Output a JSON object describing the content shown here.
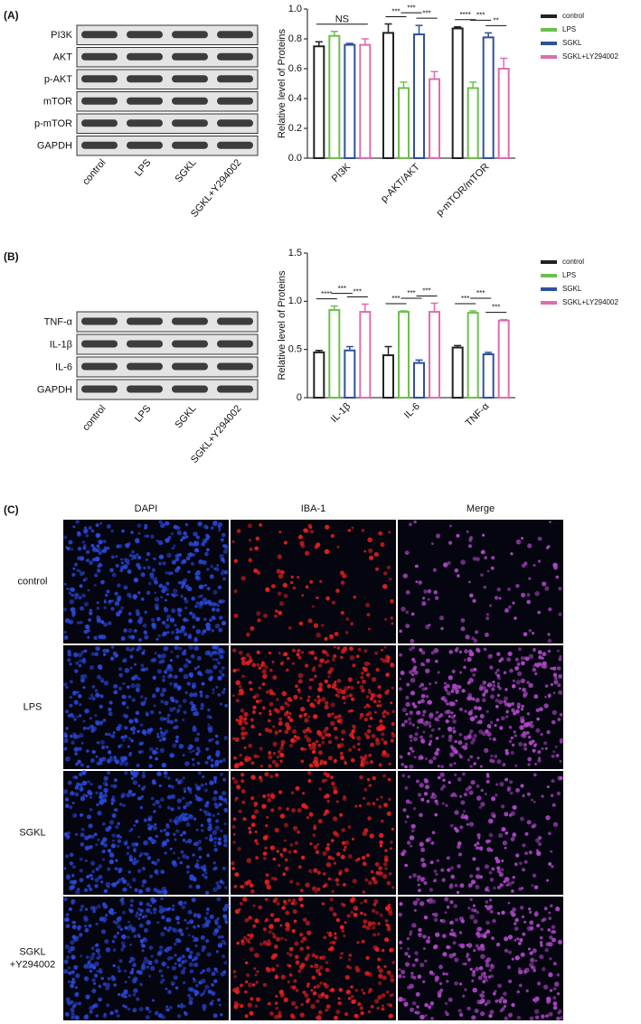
{
  "panels": {
    "labels": [
      "(A)",
      "(B)",
      "(C)"
    ]
  },
  "blots": [
    {
      "rows": [
        "PI3K",
        "AKT",
        "p-AKT",
        "mTOR",
        "p-mTOR",
        "GAPDH"
      ],
      "columns": [
        "control",
        "LPS",
        "SGKL",
        "SGKL+Y294002"
      ]
    },
    {
      "rows": [
        "TNF-α",
        "IL-1β",
        "IL-6",
        "GAPDH"
      ],
      "columns": [
        "control",
        "LPS",
        "SGKL",
        "SGKL+Y294002"
      ]
    }
  ],
  "chart_data": [
    {
      "type": "bar",
      "ylabel": "Relative level of Proteins",
      "categories": [
        "PI3K",
        "p-AKT/AKT",
        "p-mTOR/mTOR"
      ],
      "series": [
        {
          "name": "control",
          "color": "#222222",
          "values": [
            0.75,
            0.84,
            0.87
          ],
          "error": [
            0.03,
            0.06,
            0.01
          ]
        },
        {
          "name": "LPS",
          "color": "#6cc04a",
          "values": [
            0.82,
            0.47,
            0.47
          ],
          "error": [
            0.03,
            0.04,
            0.04
          ]
        },
        {
          "name": "SGKL",
          "color": "#2f4f9f",
          "values": [
            0.76,
            0.83,
            0.81
          ],
          "error": [
            0.01,
            0.06,
            0.03
          ]
        },
        {
          "name": "SGKL+LY294002",
          "color": "#e06cae",
          "values": [
            0.76,
            0.53,
            0.6
          ],
          "error": [
            0.04,
            0.05,
            0.07
          ]
        }
      ],
      "ylim": [
        0,
        1.0
      ],
      "yticks": [
        {
          "value": 0,
          "label": "0.0"
        },
        {
          "value": 0.2,
          "label": "0.2"
        },
        {
          "value": 0.4,
          "label": "0.4"
        },
        {
          "value": 0.6,
          "label": "0.6"
        },
        {
          "value": 0.8,
          "label": "0.8"
        },
        {
          "value": 1.0,
          "label": "1.0"
        }
      ],
      "annotations": [
        [
          "NS"
        ],
        [
          "***",
          "***",
          "***"
        ],
        [
          "****",
          "***",
          "**"
        ]
      ]
    },
    {
      "type": "bar",
      "ylabel": "Relative level of Proteins",
      "categories": [
        "IL-1β",
        "IL-6",
        "TNF-α"
      ],
      "series": [
        {
          "name": "control",
          "color": "#222222",
          "values": [
            0.47,
            0.44,
            0.52
          ],
          "error": [
            0.02,
            0.09,
            0.02
          ]
        },
        {
          "name": "LPS",
          "color": "#6cc04a",
          "values": [
            0.91,
            0.89,
            0.88
          ],
          "error": [
            0.04,
            0.01,
            0.02
          ]
        },
        {
          "name": "SGKL",
          "color": "#2f4f9f",
          "values": [
            0.49,
            0.36,
            0.45
          ],
          "error": [
            0.04,
            0.03,
            0.02
          ]
        },
        {
          "name": "SGKL+LY294002",
          "color": "#e06cae",
          "values": [
            0.89,
            0.89,
            0.8
          ],
          "error": [
            0.08,
            0.09,
            0.01
          ]
        }
      ],
      "ylim": [
        0,
        1.5
      ],
      "yticks": [
        0,
        0.5,
        {
          "value": 1.0,
          "label": "1.0"
        },
        1.5
      ],
      "annotations": [
        [
          "****",
          "***",
          "***"
        ],
        [
          "***",
          "***",
          "***"
        ],
        [
          "***",
          "***",
          "***"
        ]
      ]
    }
  ],
  "images": {
    "columns": [
      "DAPI",
      "IBA-1",
      "Merge"
    ],
    "rows": [
      "control",
      "LPS",
      "SGKL",
      "SGKL +Y294002"
    ]
  }
}
